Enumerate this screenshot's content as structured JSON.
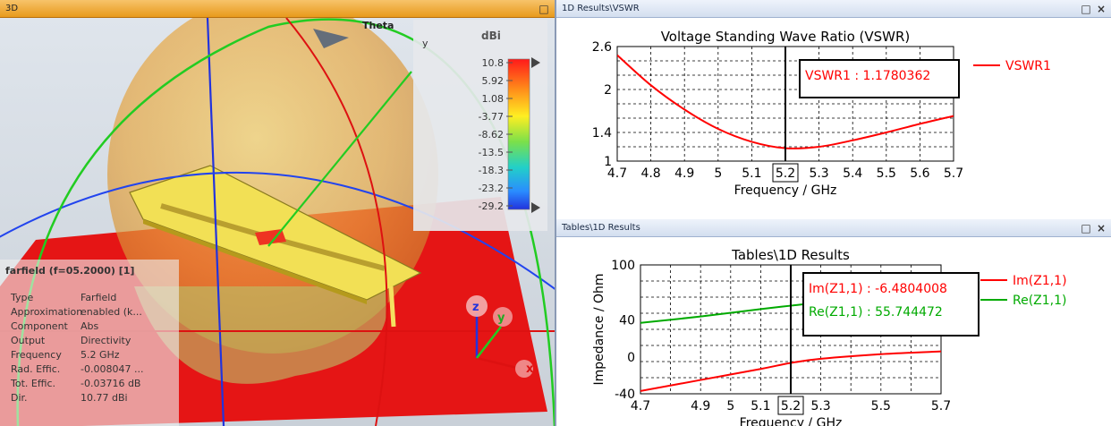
{
  "view3d": {
    "title": "3D",
    "theta_label": "Theta",
    "axis_y_label": "y",
    "colorbar": {
      "unit": "dBi",
      "ticks": [
        "10.8",
        "5.92",
        "1.08",
        "-3.77",
        "-8.62",
        "-13.5",
        "-18.3",
        "-23.2",
        "-29.2"
      ]
    },
    "axes": {
      "z": "z",
      "y": "y",
      "x": "x"
    },
    "info": {
      "title": "farfield (f=05.2000) [1]",
      "rows": [
        {
          "key": "Type",
          "value": "Farfield"
        },
        {
          "key": "Approximation",
          "value": "enabled (k..."
        },
        {
          "key": "Component",
          "value": "Abs"
        },
        {
          "key": "Output",
          "value": "Directivity"
        },
        {
          "key": "Frequency",
          "value": "5.2 GHz"
        },
        {
          "key": "Rad. Effic.",
          "value": "-0.008047 ..."
        },
        {
          "key": "Tot. Effic.",
          "value": "-0.03716 dB"
        },
        {
          "key": "Dir.",
          "value": "10.77 dBi"
        }
      ]
    }
  },
  "vswr_panel": {
    "title": "1D Results\\VSWR"
  },
  "tables_panel": {
    "title": "Tables\\1D Results"
  },
  "chart_data": [
    {
      "type": "line",
      "title": "Voltage Standing Wave Ratio (VSWR)",
      "xlabel": "Frequency / GHz",
      "ylabel": "",
      "xlim": [
        4.7,
        5.7
      ],
      "ylim": [
        1,
        2.6
      ],
      "xticks": [
        "4.7",
        "4.8",
        "4.9",
        "5",
        "5.1",
        "5.2",
        "5.3",
        "5.4",
        "5.5",
        "5.6",
        "5.7"
      ],
      "yticks": [
        "2.6",
        "2",
        "1.4",
        "1"
      ],
      "marker_x": 5.2,
      "marker_label": "5.2",
      "annotations": [
        "VSWR1 : 1.1780362"
      ],
      "legend": [
        "VSWR1"
      ],
      "colors": {
        "VSWR1": "#ff0000"
      },
      "series": [
        {
          "name": "VSWR1",
          "x": [
            4.7,
            4.8,
            4.9,
            5.0,
            5.1,
            5.2,
            5.3,
            5.4,
            5.5,
            5.6,
            5.7
          ],
          "values": [
            2.48,
            2.06,
            1.72,
            1.45,
            1.27,
            1.18,
            1.2,
            1.29,
            1.4,
            1.52,
            1.63
          ]
        }
      ]
    },
    {
      "type": "line",
      "title": "Tables\\1D Results",
      "xlabel": "Frequency / GHz",
      "ylabel": "Impedance / Ohm",
      "xlim": [
        4.7,
        5.7
      ],
      "ylim": [
        -40,
        100
      ],
      "xticks": [
        "4.7",
        "4.9",
        "5",
        "5.1",
        "5.2",
        "5.3",
        "5.5",
        "5.7"
      ],
      "yticks": [
        "100",
        "40",
        "0",
        "-40"
      ],
      "marker_x": 5.2,
      "marker_label": "5.2",
      "annotations": [
        "Im(Z1,1) : -6.4804008",
        "Re(Z1,1) : 55.744472"
      ],
      "legend": [
        "Im(Z1,1)",
        "Re(Z1,1)"
      ],
      "colors": {
        "Im(Z1,1)": "#ff0000",
        "Re(Z1,1)": "#00aa00"
      },
      "series": [
        {
          "name": "Im(Z1,1)",
          "x": [
            4.7,
            4.9,
            5.1,
            5.2,
            5.3,
            5.5,
            5.7
          ],
          "values": [
            -37,
            -25,
            -13,
            -6.5,
            -2,
            3,
            6
          ]
        },
        {
          "name": "Re(Z1,1)",
          "x": [
            4.7,
            4.9,
            5.1,
            5.2,
            5.3,
            5.5,
            5.7
          ],
          "values": [
            37,
            44,
            52,
            55.7,
            59,
            64,
            70
          ]
        }
      ]
    }
  ]
}
